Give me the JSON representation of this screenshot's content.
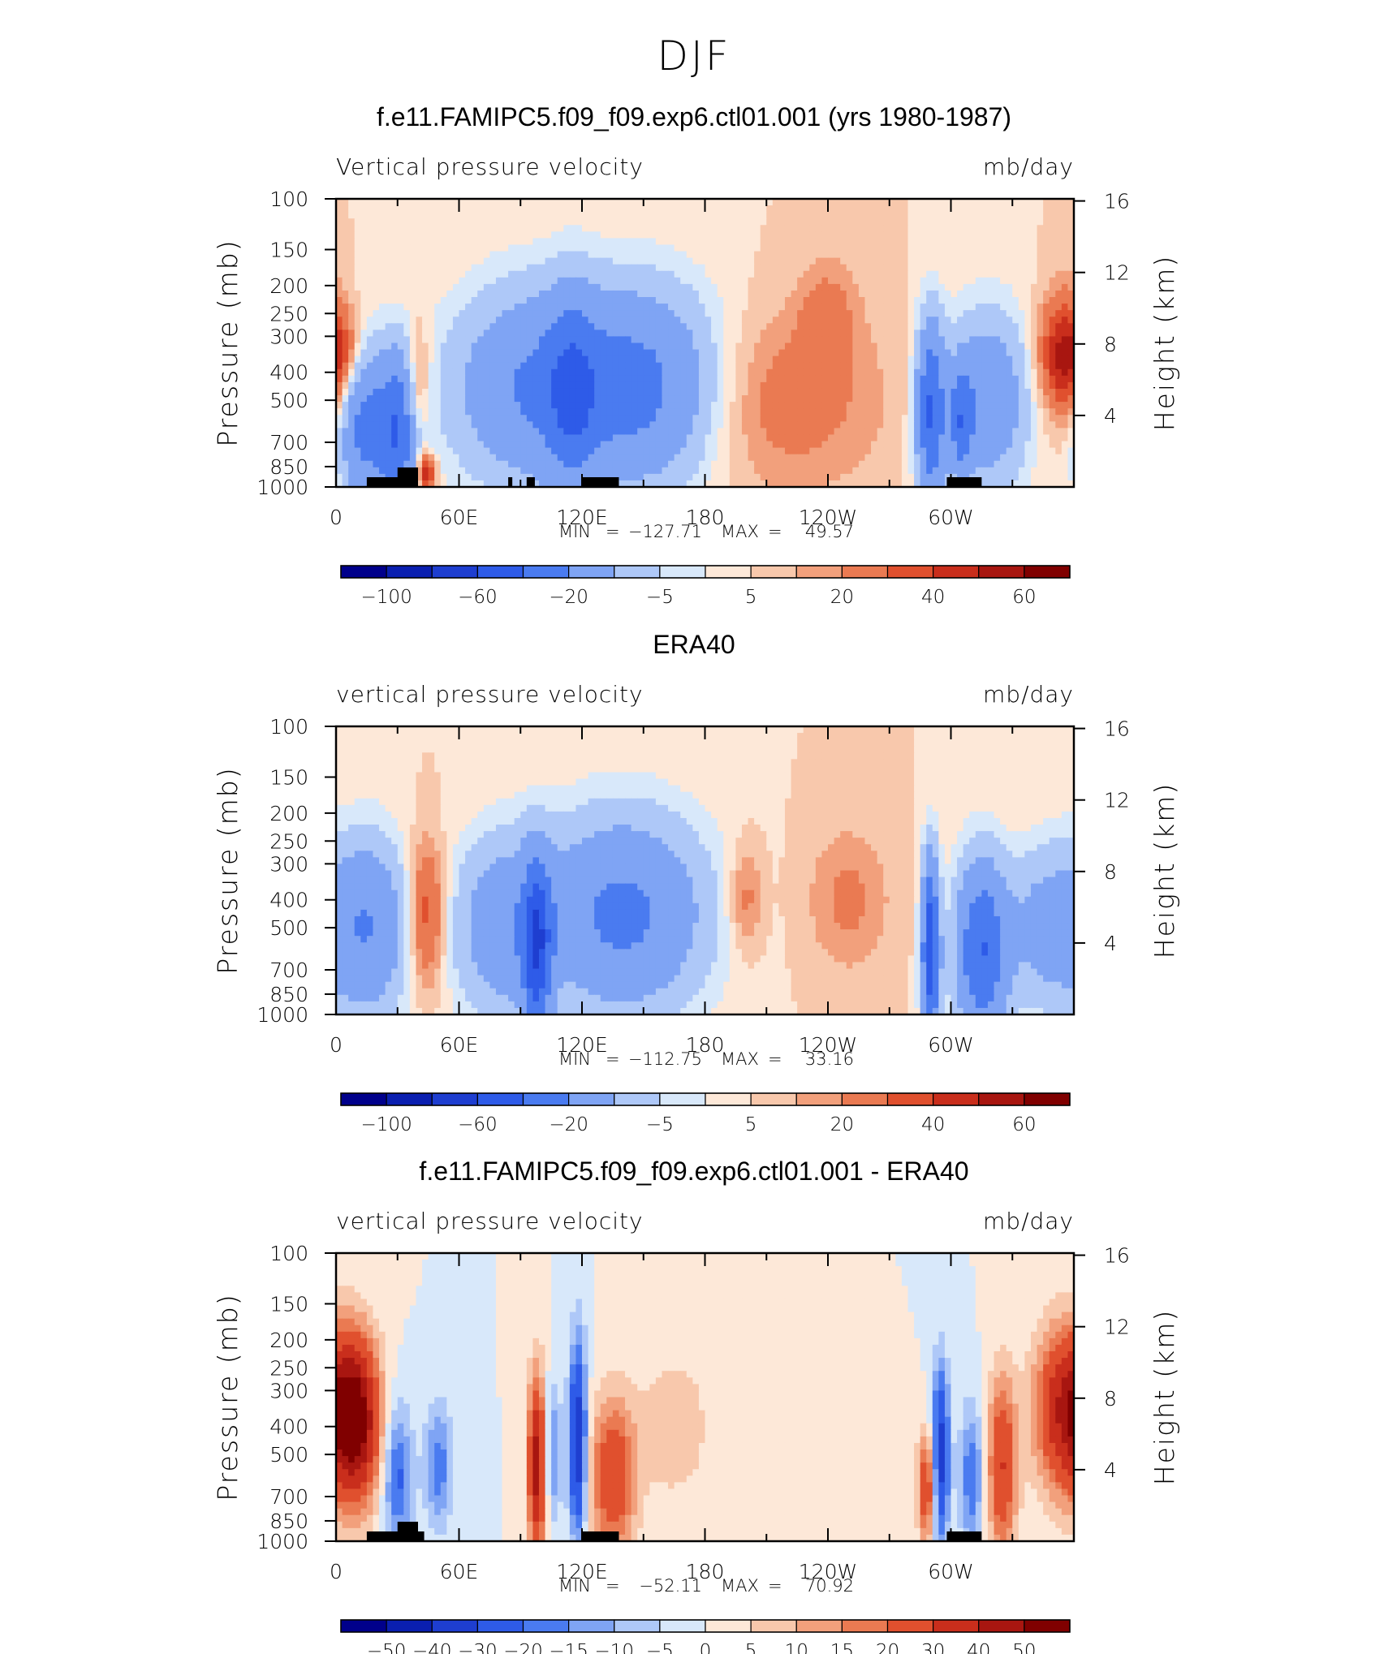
{
  "figure": {
    "title": "DJF"
  },
  "chart_data": [
    {
      "type": "heatmap",
      "title": "f.e11.FAMIPC5.f09_f09.exp6.ctl01.001 (yrs 1980-1987)",
      "subtitle_left": "Vertical pressure velocity",
      "subtitle_right": "mb/day",
      "ylabel": "Pressure (mb)",
      "y2label": "Height (km)",
      "xticklabels": [
        "0",
        "60E",
        "120E",
        "180",
        "120W",
        "60W"
      ],
      "yticklabels": [
        "100",
        "150",
        "200",
        "250",
        "300",
        "400",
        "500",
        "700",
        "850",
        "1000"
      ],
      "y2ticklabels": [
        "16",
        "12",
        "8",
        "4"
      ],
      "stats": {
        "min_label": "MIN",
        "min": "−127.71",
        "max_label": "MAX",
        "max": "49.57"
      },
      "colorbar_labels": [
        "−100",
        "−60",
        "−20",
        "−5",
        "5",
        "20",
        "40",
        "60"
      ],
      "colors": [
        "#00008b",
        "#0a1fb0",
        "#1e3ed0",
        "#2e5be8",
        "#4a7bf0",
        "#7fa4f4",
        "#aec8f8",
        "#d8e8fa",
        "#fde8d8",
        "#f8c8ac",
        "#f2a07c",
        "#ea7a52",
        "#e0502e",
        "#c92e1c",
        "#a81610",
        "#800000"
      ],
      "features": [
        {
          "lon": 0,
          "p": 350,
          "w": 10,
          "h": 0.25,
          "v": 22
        },
        {
          "lon": 13,
          "p": 600,
          "w": 8,
          "h": 0.45,
          "v": -45
        },
        {
          "lon": 30,
          "p": 650,
          "w": 7,
          "h": 0.45,
          "v": -55
        },
        {
          "lon": 40,
          "p": 450,
          "w": 4,
          "h": 0.35,
          "v": 20
        },
        {
          "lon": 44,
          "p": 900,
          "w": 3,
          "h": 0.1,
          "v": 45
        },
        {
          "lon": 95,
          "p": 450,
          "w": 28,
          "h": 0.55,
          "v": -38
        },
        {
          "lon": 115,
          "p": 500,
          "w": 8,
          "h": 0.6,
          "v": -25
        },
        {
          "lon": 150,
          "p": 450,
          "w": 28,
          "h": 0.55,
          "v": -45
        },
        {
          "lon": 215,
          "p": 500,
          "w": 35,
          "h": 0.5,
          "v": 16
        },
        {
          "lon": 240,
          "p": 250,
          "w": 10,
          "h": 0.3,
          "v": 12
        },
        {
          "lon": 290,
          "p": 550,
          "w": 5,
          "h": 0.5,
          "v": -60
        },
        {
          "lon": 305,
          "p": 600,
          "w": 4,
          "h": 0.3,
          "v": -40
        },
        {
          "lon": 318,
          "p": 500,
          "w": 14,
          "h": 0.5,
          "v": -35
        },
        {
          "lon": 355,
          "p": 350,
          "w": 8,
          "h": 0.35,
          "v": 30
        }
      ],
      "land": [
        [
          15,
          35
        ],
        [
          30,
          40
        ],
        [
          84,
          86
        ],
        [
          93,
          97
        ],
        [
          120,
          138
        ],
        [
          298,
          315
        ]
      ]
    },
    {
      "type": "heatmap",
      "title": "ERA40",
      "subtitle_left": "vertical pressure velocity",
      "subtitle_right": "mb/day",
      "ylabel": "Pressure (mb)",
      "y2label": "Height (km)",
      "xticklabels": [
        "0",
        "60E",
        "120E",
        "180",
        "120W",
        "60W"
      ],
      "yticklabels": [
        "100",
        "150",
        "200",
        "250",
        "300",
        "400",
        "500",
        "700",
        "850",
        "1000"
      ],
      "y2ticklabels": [
        "16",
        "12",
        "8",
        "4"
      ],
      "stats": {
        "min_label": "MIN",
        "min": "−112.75",
        "max_label": "MAX",
        "max": "33.16"
      },
      "colorbar_labels": [
        "−100",
        "−60",
        "−20",
        "−5",
        "5",
        "20",
        "40",
        "60"
      ],
      "colors": [
        "#00008b",
        "#0a1fb0",
        "#1e3ed0",
        "#2e5be8",
        "#4a7bf0",
        "#7fa4f4",
        "#aec8f8",
        "#d8e8fa",
        "#fde8d8",
        "#f8c8ac",
        "#f2a07c",
        "#ea7a52",
        "#e0502e",
        "#c92e1c",
        "#a81610",
        "#800000"
      ],
      "features": [
        {
          "lon": 15,
          "p": 500,
          "w": 14,
          "h": 0.5,
          "v": -40
        },
        {
          "lon": 44,
          "p": 450,
          "w": 6,
          "h": 0.4,
          "v": 28
        },
        {
          "lon": 80,
          "p": 500,
          "w": 16,
          "h": 0.5,
          "v": -30
        },
        {
          "lon": 98,
          "p": 600,
          "w": 5,
          "h": 0.5,
          "v": -60
        },
        {
          "lon": 140,
          "p": 450,
          "w": 28,
          "h": 0.55,
          "v": -45
        },
        {
          "lon": 200,
          "p": 400,
          "w": 6,
          "h": 0.3,
          "v": 15
        },
        {
          "lon": 250,
          "p": 400,
          "w": 14,
          "h": 0.4,
          "v": 12
        },
        {
          "lon": 290,
          "p": 600,
          "w": 3,
          "h": 0.5,
          "v": -80
        },
        {
          "lon": 315,
          "p": 600,
          "w": 9,
          "h": 0.5,
          "v": -60
        },
        {
          "lon": 345,
          "p": 500,
          "w": 12,
          "h": 0.45,
          "v": -25
        }
      ],
      "land": []
    },
    {
      "type": "heatmap",
      "title": "f.e11.FAMIPC5.f09_f09.exp6.ctl01.001 - ERA40",
      "subtitle_left": "vertical pressure velocity",
      "subtitle_right": "mb/day",
      "ylabel": "Pressure (mb)",
      "y2label": "Height (km)",
      "xticklabels": [
        "0",
        "60E",
        "120E",
        "180",
        "120W",
        "60W"
      ],
      "yticklabels": [
        "100",
        "150",
        "200",
        "250",
        "300",
        "400",
        "500",
        "700",
        "850",
        "1000"
      ],
      "y2ticklabels": [
        "16",
        "12",
        "8",
        "4"
      ],
      "stats": {
        "min_label": "MIN",
        "min": "−52.11",
        "max_label": "MAX",
        "max": "70.92"
      },
      "colorbar_labels": [
        "−50",
        "−40",
        "−30",
        "−20",
        "−15",
        "−10",
        "−5",
        "0",
        "5",
        "10",
        "15",
        "20",
        "30",
        "40",
        "50"
      ],
      "colors": [
        "#00008b",
        "#0a1fb0",
        "#1e3ed0",
        "#2e5be8",
        "#4a7bf0",
        "#7fa4f4",
        "#aec8f8",
        "#d8e8fa",
        "#fde8d8",
        "#f8c8ac",
        "#f2a07c",
        "#ea7a52",
        "#e0502e",
        "#c92e1c",
        "#a81610",
        "#800000"
      ],
      "features": [
        {
          "lon": 10,
          "p": 380,
          "w": 8,
          "h": 0.45,
          "v": 52
        },
        {
          "lon": 30,
          "p": 600,
          "w": 5,
          "h": 0.4,
          "v": -22
        },
        {
          "lon": 50,
          "p": 550,
          "w": 5,
          "h": 0.35,
          "v": -18
        },
        {
          "lon": 98,
          "p": 550,
          "w": 3,
          "h": 0.5,
          "v": 45
        },
        {
          "lon": 106,
          "p": 500,
          "w": 3,
          "h": 0.4,
          "v": -15
        },
        {
          "lon": 118,
          "p": 450,
          "w": 3,
          "h": 0.55,
          "v": -40
        },
        {
          "lon": 135,
          "p": 600,
          "w": 8,
          "h": 0.45,
          "v": 28
        },
        {
          "lon": 165,
          "p": 400,
          "w": 12,
          "h": 0.4,
          "v": 10
        },
        {
          "lon": 288,
          "p": 650,
          "w": 3,
          "h": 0.3,
          "v": 30
        },
        {
          "lon": 295,
          "p": 500,
          "w": 3,
          "h": 0.5,
          "v": -35
        },
        {
          "lon": 310,
          "p": 600,
          "w": 4,
          "h": 0.4,
          "v": -20
        },
        {
          "lon": 325,
          "p": 550,
          "w": 5,
          "h": 0.5,
          "v": 30
        },
        {
          "lon": 355,
          "p": 350,
          "w": 10,
          "h": 0.45,
          "v": 38
        }
      ],
      "land": [
        [
          15,
          35
        ],
        [
          30,
          40
        ],
        [
          35,
          43
        ],
        [
          120,
          138
        ],
        [
          298,
          315
        ]
      ]
    }
  ]
}
